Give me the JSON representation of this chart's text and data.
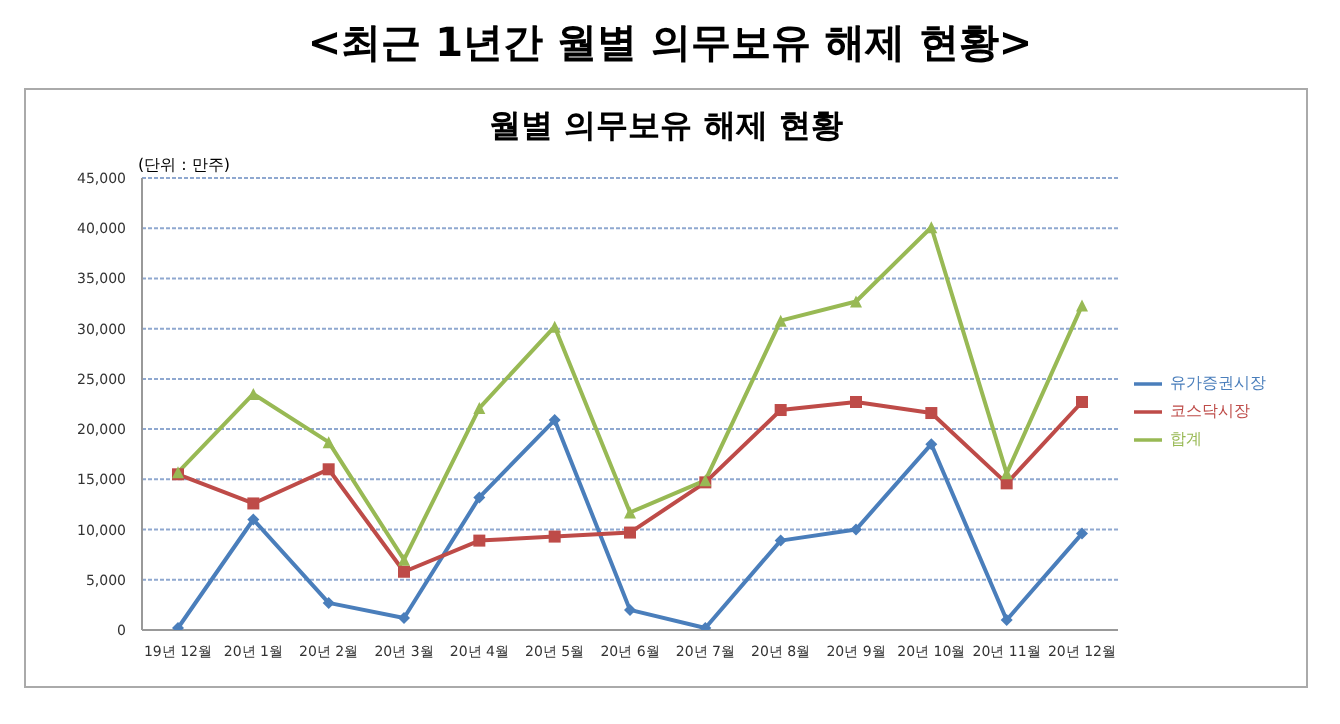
{
  "chart_data": {
    "type": "line",
    "title": "<최근 1년간 월별 의무보유 해제 현황>",
    "subtitle": "월별 의무보유 해제 현황",
    "ylabel": "(단위 : 만주)",
    "categories": [
      "19년 12월",
      "20년 1월",
      "20년 2월",
      "20년 3월",
      "20년 4월",
      "20년 5월",
      "20년 6월",
      "20년 7월",
      "20년 8월",
      "20년 9월",
      "20년 10월",
      "20년 11월",
      "20년 12월"
    ],
    "series": [
      {
        "name": "유가증권시장",
        "color": "#4a7ebb",
        "marker": "diamond",
        "values": [
          200,
          11000,
          2700,
          1200,
          13200,
          20900,
          2000,
          200,
          8900,
          10000,
          18500,
          1000,
          9600
        ]
      },
      {
        "name": "코스닥시장",
        "color": "#be4b48",
        "marker": "square",
        "values": [
          15500,
          12600,
          16000,
          5800,
          8900,
          9300,
          9700,
          14700,
          21900,
          22700,
          21600,
          14600,
          22700
        ]
      },
      {
        "name": "합계",
        "color": "#98b954",
        "marker": "triangle",
        "values": [
          15700,
          23500,
          18700,
          7000,
          22100,
          30200,
          11700,
          14900,
          30800,
          32700,
          40100,
          15600,
          32300
        ]
      }
    ],
    "ylim": [
      0,
      45000
    ],
    "yticks": [
      0,
      {
        "value": 5000,
        "label": "5,000"
      },
      {
        "value": 10000,
        "label": "10,000"
      },
      {
        "value": 15000,
        "label": "15,000"
      },
      {
        "value": 20000,
        "label": "20,000"
      },
      {
        "value": 25000,
        "label": "25,000"
      },
      {
        "value": 30000,
        "label": "30,000"
      },
      {
        "value": 35000,
        "label": "35,000"
      },
      {
        "value": 40000,
        "label": "40,000"
      },
      {
        "value": 45000,
        "label": "45,000"
      }
    ],
    "grid": "y",
    "legend": "right"
  }
}
